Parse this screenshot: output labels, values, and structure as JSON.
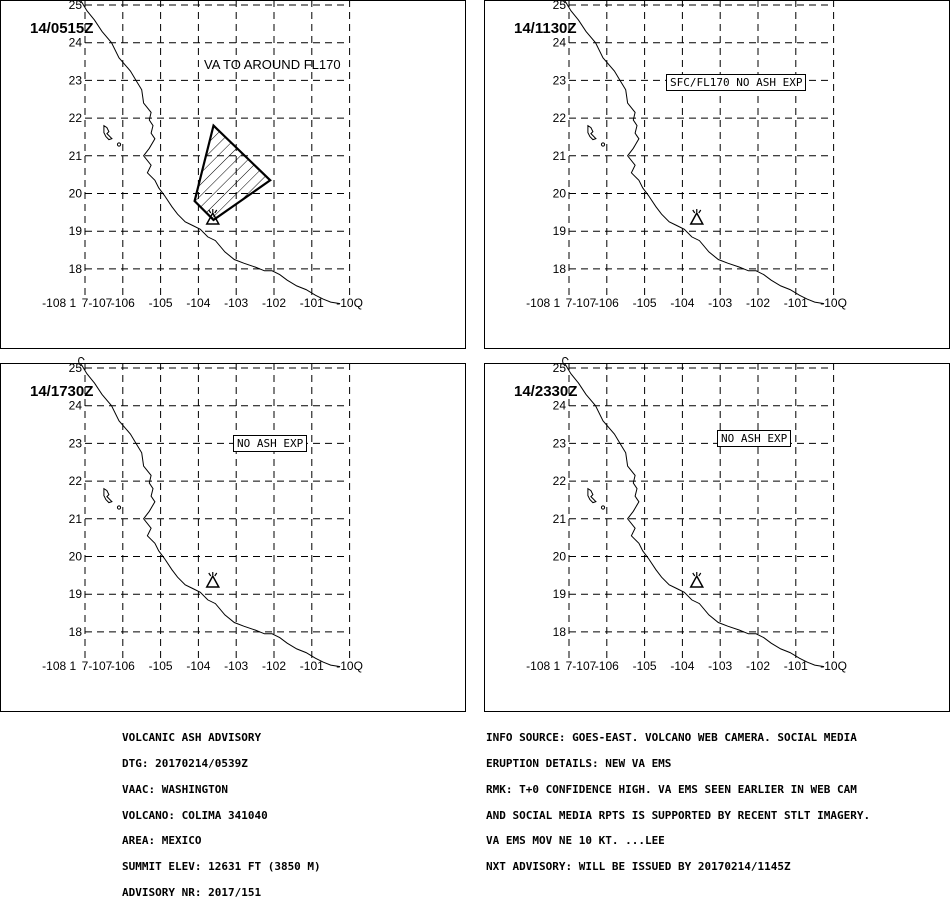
{
  "map": {
    "y_tick_labels": [
      "25",
      "24",
      "23",
      "22",
      "21",
      "20",
      "19",
      "18"
    ],
    "x_tick_labels": [
      "-108",
      "-107",
      "-106",
      "-105",
      "-104",
      "-103",
      "-102",
      "-101",
      "-100"
    ],
    "x_tick_display": [
      "-108 1",
      "7-107",
      "-106",
      "-105",
      "-104",
      "-103",
      "-102",
      "-101",
      "-10Q"
    ],
    "volcano_icon": "triangle-volcano-icon",
    "ash_area_fill": "diagonal-hatch",
    "line_color": "#000000",
    "background": "#ffffff"
  },
  "panels": [
    {
      "time": "14/0515Z",
      "note": "VA TO AROUND FL170",
      "note_style": "plain",
      "has_ash_polygon": true
    },
    {
      "time": "14/1130Z",
      "note": "SFC/FL170  NO  ASH  EXP",
      "note_style": "box",
      "has_ash_polygon": false
    },
    {
      "time": "14/1730Z",
      "note": "NO  ASH  EXP",
      "note_style": "box",
      "has_ash_polygon": false
    },
    {
      "time": "14/2330Z",
      "note": "NO  ASH  EXP",
      "note_style": "box",
      "has_ash_polygon": false
    }
  ],
  "advisory_left": [
    "VOLCANIC ASH ADVISORY",
    "DTG: 20170214/0539Z",
    "VAAC: WASHINGTON",
    "VOLCANO: COLIMA 341040",
    "AREA: MEXICO",
    "SUMMIT ELEV: 12631 FT (3850 M)",
    "ADVISORY NR: 2017/151"
  ],
  "advisory_right": [
    "INFO SOURCE: GOES-EAST. VOLCANO WEB CAMERA. SOCIAL MEDIA",
    "ERUPTION DETAILS: NEW VA EMS",
    "RMK: T+0 CONFIDENCE HIGH. VA EMS SEEN EARLIER IN WEB CAM",
    "AND SOCIAL MEDIA RPTS IS SUPPORTED BY RECENT STLT IMAGERY.",
    "VA EMS MOV NE 10 KT. ...LEE",
    "NXT ADVISORY: WILL BE ISSUED BY 20170214/1145Z"
  ]
}
